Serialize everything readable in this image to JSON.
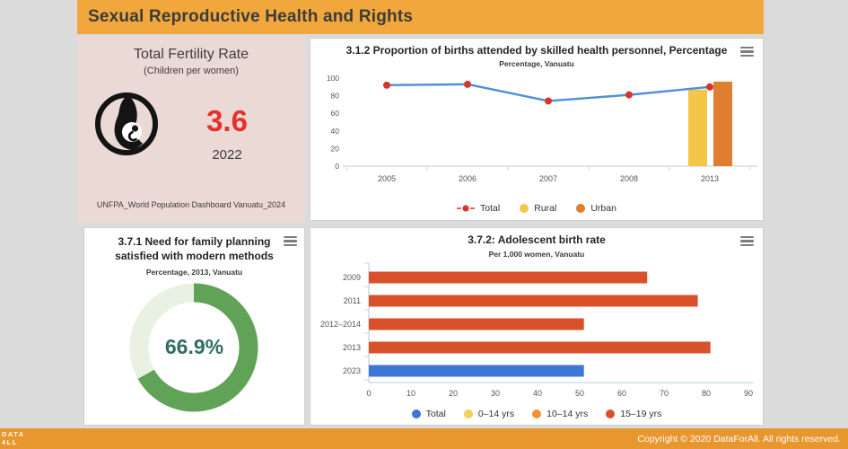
{
  "page": {
    "title": "Sexual Reproductive Health and Rights"
  },
  "fertility_card": {
    "title": "Total Fertility Rate",
    "subtitle": "(Children per women)",
    "value": "3.6",
    "year": "2022",
    "source": "UNFPA_World Population Dashboard Vanuatu_2024",
    "value_color": "#e5312b"
  },
  "chart_data": [
    {
      "id": "births-attended",
      "type": "line",
      "title": "3.1.2 Proportion of births attended by skilled health personnel, Percentage",
      "subtitle": "Percentage, Vanuatu",
      "categories": [
        "2005",
        "2006",
        "2007",
        "2008",
        "2013"
      ],
      "series": [
        {
          "name": "Total",
          "type": "line",
          "marker_color": "#d8352b",
          "line_color": "#4d90d9",
          "values": [
            92,
            93,
            74,
            81,
            90
          ]
        },
        {
          "name": "Rural",
          "type": "bar",
          "color": "#f4c647",
          "values": [
            null,
            null,
            null,
            null,
            87
          ]
        },
        {
          "name": "Urban",
          "type": "bar",
          "color": "#df7e2f",
          "values": [
            null,
            null,
            null,
            null,
            96
          ]
        }
      ],
      "ylim": [
        0,
        100
      ],
      "yticks": [
        0,
        20,
        40,
        60,
        80,
        100
      ],
      "grid": false,
      "legend_position": "bottom"
    },
    {
      "id": "family-planning",
      "type": "pie",
      "title_line1": "3.7.1 Need for family planning",
      "title_line2": "satisfied with modern methods",
      "subtitle": "Percentage, 2013, Vanuatu",
      "value_percent": 66.9,
      "label": "66.9%",
      "ring_color": "#61a356",
      "track_color": "#e9f1e3",
      "label_color": "#2f6e60"
    },
    {
      "id": "adolescent-birth-rate",
      "type": "bar",
      "title": "3.7.2: Adolescent birth rate",
      "subtitle": "Per 1,000 women, Vanuatu",
      "categories": [
        "2009",
        "2011",
        "2012–2014",
        "2013",
        "2023"
      ],
      "values": [
        66,
        78,
        51,
        81,
        51
      ],
      "bar_series": [
        "15–19 yrs",
        "15–19 yrs",
        "15–19 yrs",
        "15–19 yrs",
        "Total"
      ],
      "bar_colors": [
        "#d8512b",
        "#d8512b",
        "#d8512b",
        "#d8512b",
        "#3d76d3"
      ],
      "xlim": [
        0,
        90
      ],
      "xticks": [
        0,
        10,
        20,
        30,
        40,
        50,
        60,
        70,
        80,
        90
      ],
      "grid": false,
      "legend_position": "bottom",
      "legend": [
        {
          "name": "Total",
          "color": "#3d76d3"
        },
        {
          "name": "0–14 yrs",
          "color": "#f5d154"
        },
        {
          "name": "10–14 yrs",
          "color": "#f09437"
        },
        {
          "name": "15–19 yrs",
          "color": "#d8512b"
        }
      ]
    }
  ],
  "footer": {
    "logo_line1": "DATA",
    "logo_line2": "4LL",
    "copyright": "Copyright © 2020 DataForAll. All rights reserved."
  }
}
